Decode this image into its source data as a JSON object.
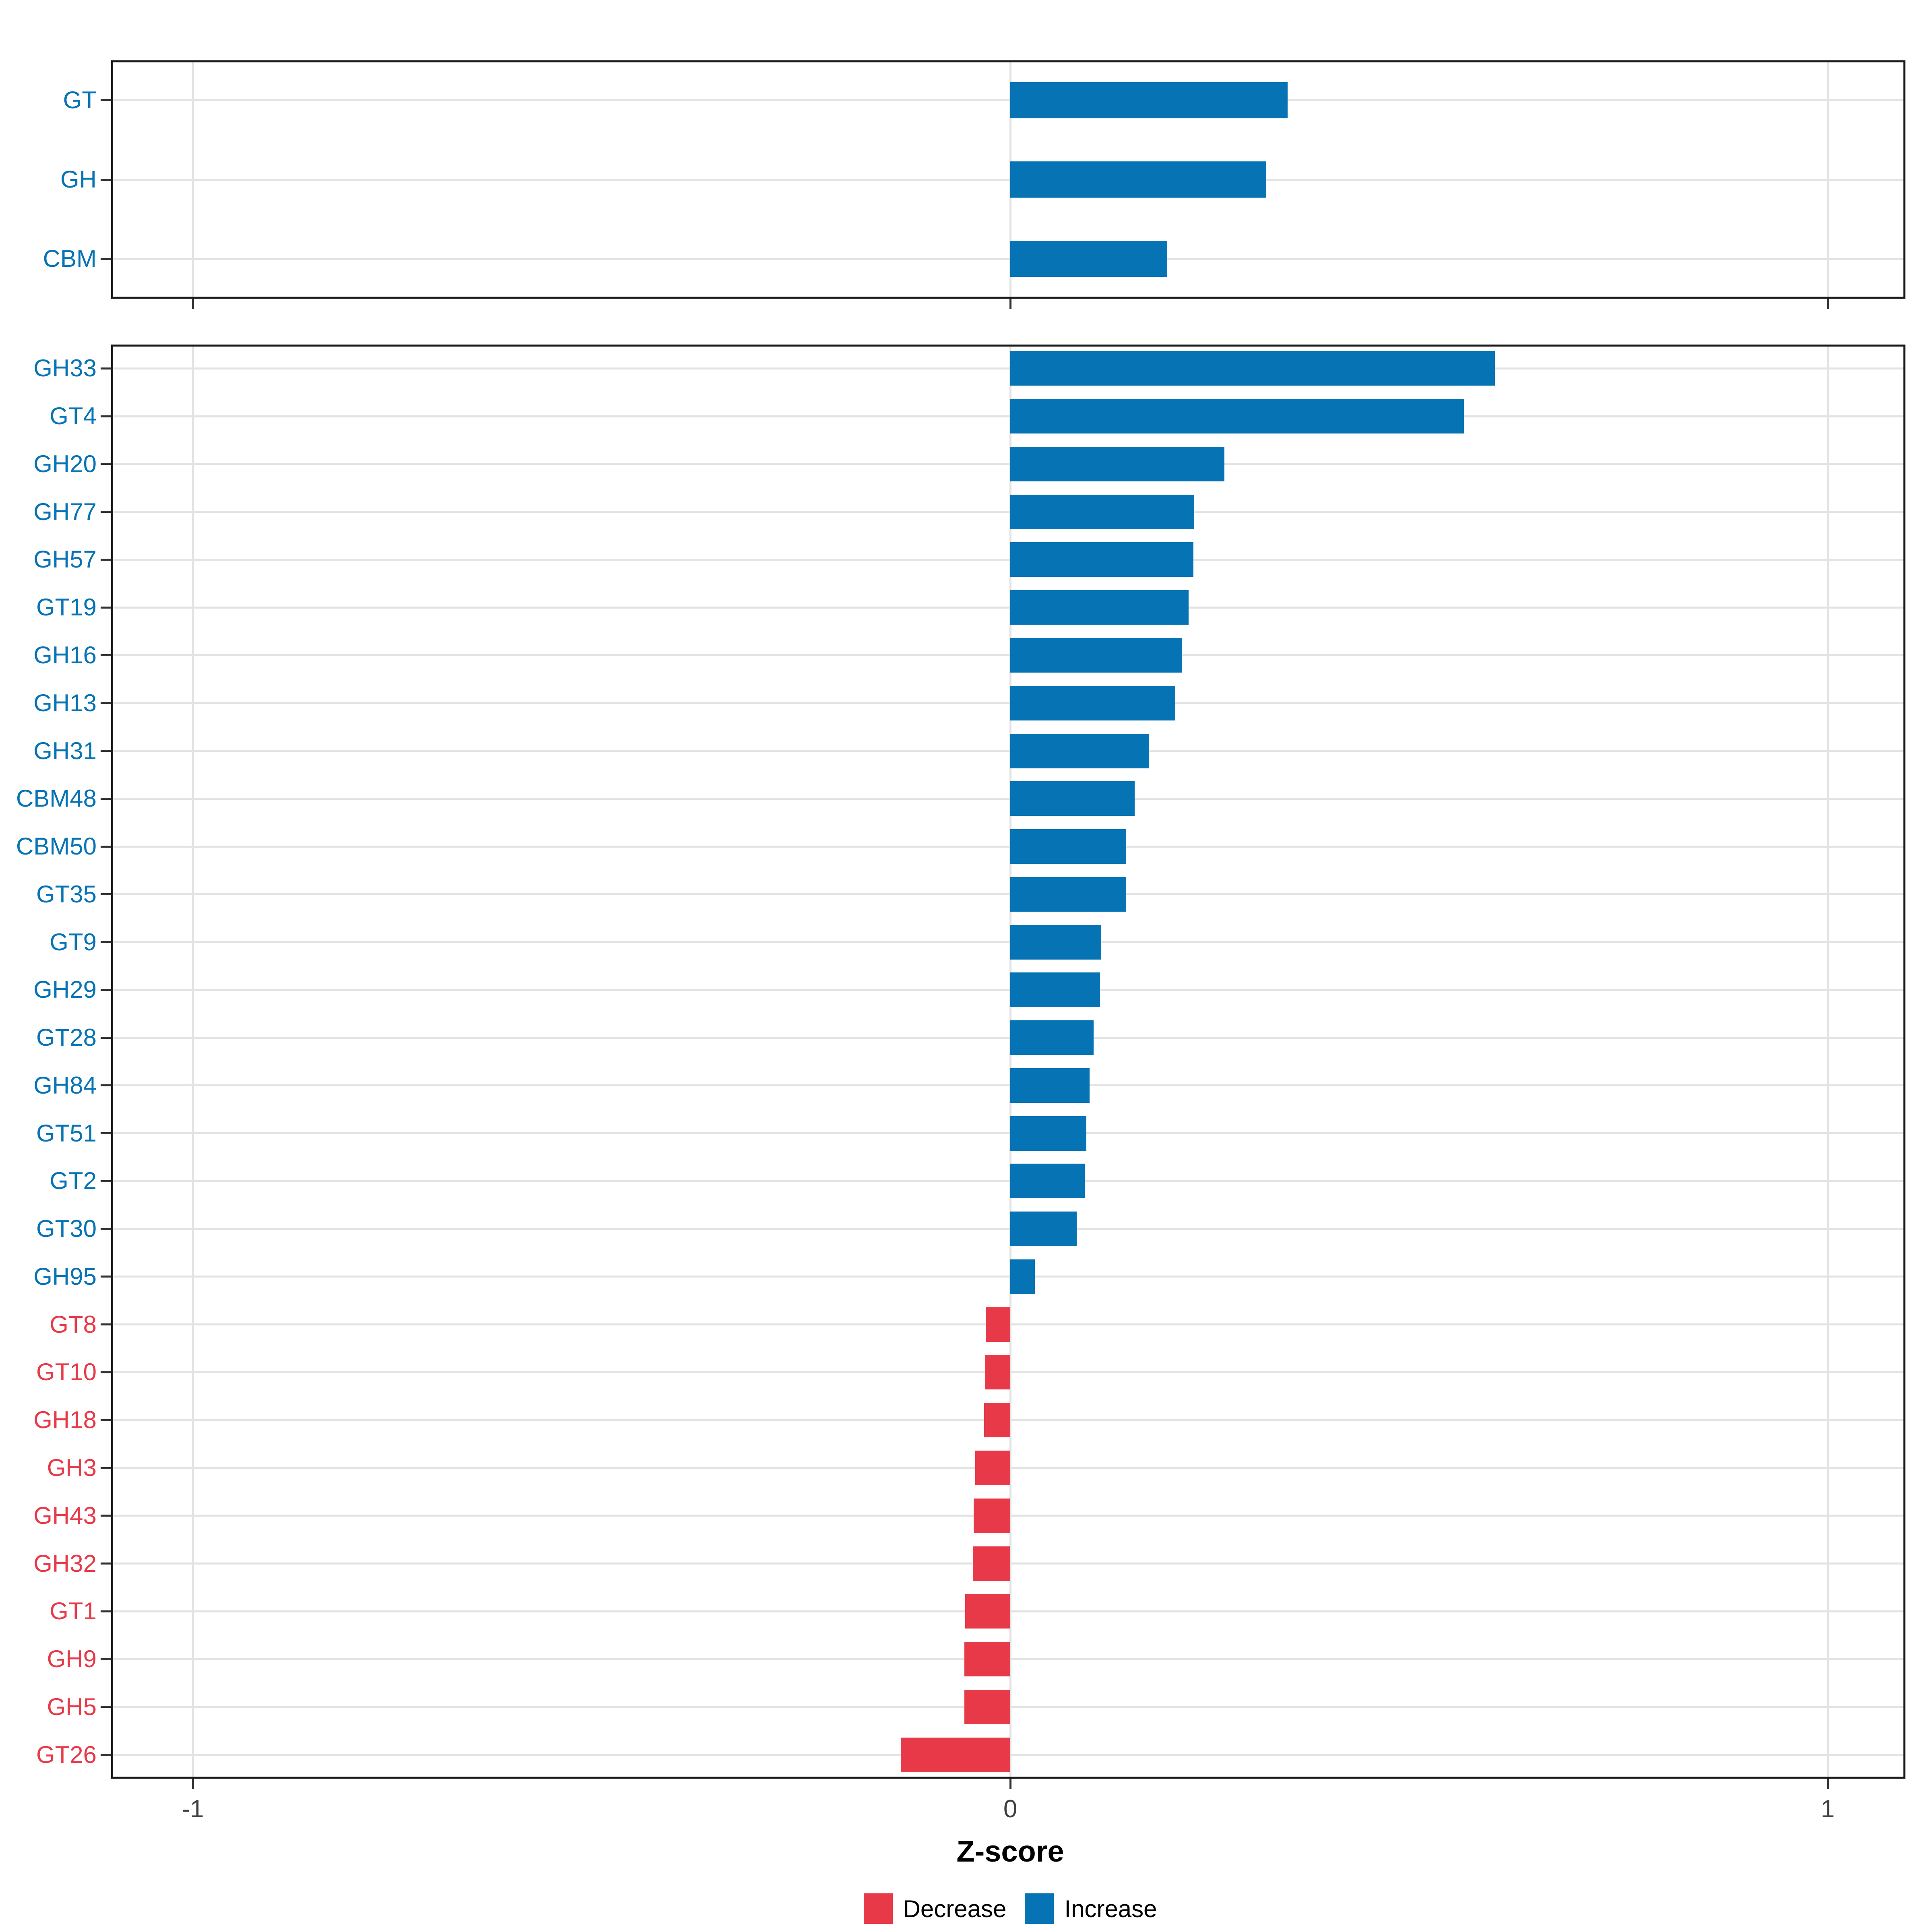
{
  "chart_data": {
    "type": "bar",
    "orientation": "horizontal",
    "xlabel": "Z-score",
    "xlim": [
      -1.1,
      1.095
    ],
    "x_ticks": [
      -1,
      0,
      1
    ],
    "x_tick_labels": [
      "-1",
      "0",
      "1"
    ],
    "grid": "major-only",
    "colors": {
      "increase": "#0673B4",
      "decrease": "#E73948"
    },
    "legend": {
      "position": "bottom",
      "entries": [
        {
          "label": "Decrease",
          "color": "#E73948"
        },
        {
          "label": "Increase",
          "color": "#0673B4"
        }
      ]
    },
    "panels": [
      {
        "name": "class-summary",
        "categories": [
          "GT",
          "GH",
          "CBM"
        ],
        "values": [
          0.339,
          0.313,
          0.192
        ],
        "directions": [
          "increase",
          "increase",
          "increase"
        ]
      },
      {
        "name": "family-detail",
        "categories": [
          "GH33",
          "GT4",
          "GH20",
          "GH77",
          "GH57",
          "GT19",
          "GH16",
          "GH13",
          "GH31",
          "CBM48",
          "CBM50",
          "GT35",
          "GT9",
          "GH29",
          "GT28",
          "GH84",
          "GT51",
          "GT2",
          "GT30",
          "GH95",
          "GT8",
          "GT10",
          "GH18",
          "GH3",
          "GH43",
          "GH32",
          "GT1",
          "GH9",
          "GH5",
          "GT26"
        ],
        "values": [
          0.593,
          0.555,
          0.262,
          0.225,
          0.224,
          0.218,
          0.21,
          0.202,
          0.17,
          0.152,
          0.142,
          0.142,
          0.111,
          0.11,
          0.102,
          0.097,
          0.093,
          0.091,
          0.081,
          0.03,
          -0.03,
          -0.031,
          -0.032,
          -0.043,
          -0.045,
          -0.046,
          -0.055,
          -0.056,
          -0.056,
          -0.134
        ],
        "directions": [
          "increase",
          "increase",
          "increase",
          "increase",
          "increase",
          "increase",
          "increase",
          "increase",
          "increase",
          "increase",
          "increase",
          "increase",
          "increase",
          "increase",
          "increase",
          "increase",
          "increase",
          "increase",
          "increase",
          "increase",
          "decrease",
          "decrease",
          "decrease",
          "decrease",
          "decrease",
          "decrease",
          "decrease",
          "decrease",
          "decrease",
          "decrease"
        ]
      }
    ]
  }
}
